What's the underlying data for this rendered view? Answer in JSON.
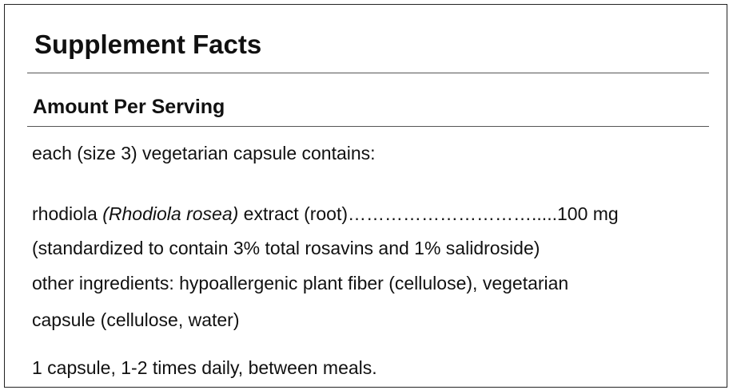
{
  "panel": {
    "title": "Supplement Facts",
    "subtitle": "Amount Per Serving",
    "serving_intro": "each (size 3) vegetarian capsule contains:",
    "ingredient": {
      "name": "rhodiola",
      "latin": "(Rhodiola rosea)",
      "part": "extract (root)",
      "leader": "………………………….....",
      "amount": "100 mg"
    },
    "standardized": "(standardized to contain 3% total rosavins and 1% salidroside)",
    "other_ingredients_line1": "other ingredients: hypoallergenic plant fiber (cellulose), vegetarian",
    "other_ingredients_line2": "capsule (cellulose, water)",
    "directions": "1 capsule, 1-2 times daily, between meals."
  }
}
